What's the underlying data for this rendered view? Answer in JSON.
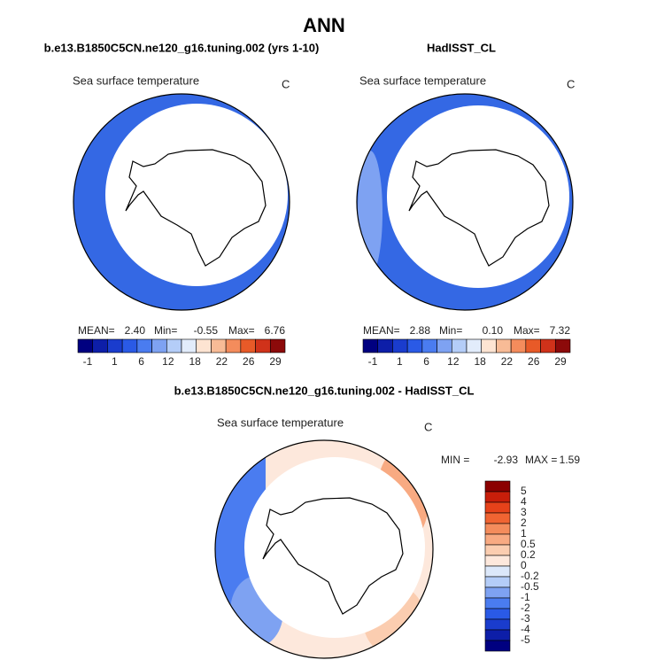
{
  "title": "ANN",
  "panels": [
    {
      "case": "b.e13.B1850C5CN.ne120_g16.tuning.002 (yrs 1-10)",
      "variable": "Sea surface temperature",
      "units": "C",
      "stats": {
        "mean_label": "MEAN=",
        "mean": "2.40",
        "min_label": "Min=",
        "min": "-0.55",
        "max_label": "Max=",
        "max": "6.76"
      },
      "colorbar": {
        "labels": [
          "-1",
          "1",
          "6",
          "12",
          "18",
          "22",
          "26",
          "29"
        ],
        "colors": [
          "#000080",
          "#0d1ea8",
          "#1a3ccd",
          "#2a5ae6",
          "#4a7cf0",
          "#7ea2f2",
          "#b4cdf8",
          "#e2ecfb",
          "#fde4d2",
          "#f8bb96",
          "#f48c5c",
          "#e85a28",
          "#d0321a",
          "#8c0a0a"
        ]
      }
    },
    {
      "case": "HadISST_CL",
      "variable": "Sea surface temperature",
      "units": "C",
      "stats": {
        "mean_label": "MEAN=",
        "mean": "2.88",
        "min_label": "Min=",
        "min": "0.10",
        "max_label": "Max=",
        "max": "7.32"
      },
      "colorbar": {
        "labels": [
          "-1",
          "1",
          "6",
          "12",
          "18",
          "22",
          "26",
          "29"
        ],
        "colors": [
          "#000080",
          "#0d1ea8",
          "#1a3ccd",
          "#2a5ae6",
          "#4a7cf0",
          "#7ea2f2",
          "#b4cdf8",
          "#e2ecfb",
          "#fde4d2",
          "#f8bb96",
          "#f48c5c",
          "#e85a28",
          "#d0321a",
          "#8c0a0a"
        ]
      }
    },
    {
      "case": "b.e13.B1850C5CN.ne120_g16.tuning.002 - HadISST_CL",
      "variable": "Sea surface temperature",
      "units": "C",
      "stats": {
        "min_label": "MIN =",
        "min": "-2.93",
        "max_label": "MAX =",
        "max": "1.59"
      },
      "colorbar": {
        "labels": [
          "5",
          "4",
          "3",
          "2",
          "1",
          "0.5",
          "0.2",
          "0",
          "-0.2",
          "-0.5",
          "-1",
          "-2",
          "-3",
          "-4",
          "-5"
        ],
        "colors": [
          "#8b0000",
          "#c81e0a",
          "#e6421a",
          "#f06432",
          "#f48c5c",
          "#f8aa82",
          "#fbcdb0",
          "#fde8dc",
          "#dce8fa",
          "#b4cdf8",
          "#7ea2f2",
          "#4a7cf0",
          "#2a5ae6",
          "#1a3ccd",
          "#0d1ea8",
          "#000080"
        ]
      }
    }
  ]
}
